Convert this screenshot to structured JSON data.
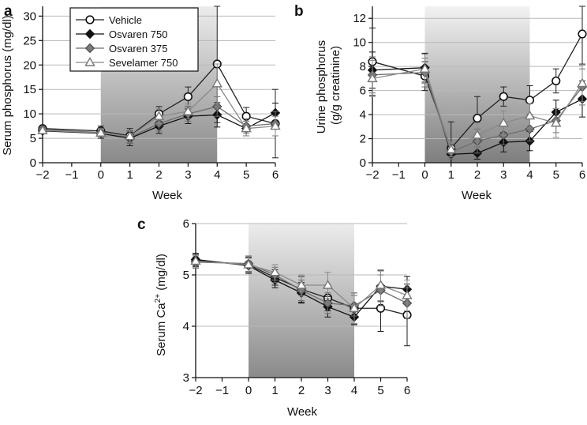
{
  "chart_data": [
    {
      "id": "a",
      "type": "line",
      "panel_label": "a",
      "xlabel": "Week",
      "ylabel": "Serum phosphorus (mg/dl)",
      "x": [
        -2,
        0,
        1,
        2,
        3,
        4,
        5,
        6
      ],
      "xlim": [
        -2,
        6
      ],
      "ylim": [
        0,
        32
      ],
      "yticks": [
        0,
        5,
        10,
        15,
        20,
        25,
        30
      ],
      "xticks": [
        -2,
        -1,
        0,
        1,
        2,
        3,
        4,
        5,
        6
      ],
      "xtick_labels": [
        "−2",
        "−1",
        "0",
        "1",
        "2",
        "3",
        "4",
        "5",
        "6"
      ],
      "shaded_range": [
        0,
        4
      ],
      "grid": true,
      "legend": "top-left",
      "series": [
        {
          "name": "Vehicle",
          "marker": "circle-open",
          "color": "#222222",
          "values": [
            7.0,
            6.5,
            5.5,
            10.0,
            13.5,
            20.2,
            9.5,
            8.0
          ],
          "err": [
            0.5,
            1.0,
            1.5,
            1.5,
            2.0,
            12.0,
            1.8,
            7.0
          ]
        },
        {
          "name": "Osvaren 750",
          "marker": "diamond-filled",
          "color": "#111111",
          "values": [
            6.5,
            6.0,
            5.0,
            7.5,
            9.5,
            9.8,
            7.0,
            10.2
          ],
          "err": [
            0.6,
            1.0,
            1.5,
            1.5,
            1.5,
            2.5,
            1.5,
            2.0
          ]
        },
        {
          "name": "Osvaren 375",
          "marker": "diamond-gray",
          "color": "#6e6e6e",
          "values": [
            6.8,
            6.2,
            5.2,
            8.0,
            10.0,
            11.5,
            7.5,
            8.0
          ],
          "err": [
            0.5,
            0.8,
            1.2,
            1.5,
            1.5,
            2.0,
            1.5,
            2.5
          ]
        },
        {
          "name": "Sevelamer 750",
          "marker": "triangle-open",
          "color": "#8a8a8a",
          "values": [
            6.6,
            6.1,
            5.4,
            9.5,
            10.5,
            16.2,
            7.0,
            7.5
          ],
          "err": [
            0.5,
            0.8,
            1.2,
            1.5,
            1.5,
            4.0,
            1.5,
            2.0
          ]
        }
      ]
    },
    {
      "id": "b",
      "type": "line",
      "panel_label": "b",
      "xlabel": "Week",
      "ylabel": "Urine phosphorus (g/g creatinine)",
      "x": [
        -2,
        0,
        1,
        2,
        3,
        4,
        5,
        6
      ],
      "xlim": [
        -2,
        6
      ],
      "ylim": [
        0,
        13
      ],
      "yticks": [
        0,
        2,
        4,
        6,
        8,
        10,
        12
      ],
      "xticks": [
        -2,
        -1,
        0,
        1,
        2,
        3,
        4,
        5,
        6
      ],
      "xtick_labels": [
        "−2",
        "−1",
        "0",
        "1",
        "2",
        "3",
        "4",
        "5",
        "6"
      ],
      "shaded_range": [
        0,
        4
      ],
      "grid": true,
      "series": [
        {
          "name": "Vehicle",
          "marker": "circle-open",
          "color": "#222222",
          "values": [
            8.4,
            7.2,
            1.2,
            3.7,
            5.5,
            5.2,
            6.8,
            10.7
          ],
          "err": [
            2.8,
            1.2,
            2.2,
            1.8,
            0.8,
            1.2,
            1.0,
            2.5
          ]
        },
        {
          "name": "Osvaren 750",
          "marker": "diamond-filled",
          "color": "#111111",
          "values": [
            7.7,
            7.9,
            0.7,
            0.8,
            1.7,
            1.8,
            4.2,
            5.3
          ],
          "err": [
            1.5,
            1.2,
            0.8,
            0.5,
            0.8,
            0.8,
            1.0,
            1.5
          ]
        },
        {
          "name": "Osvaren 375",
          "marker": "diamond-gray",
          "color": "#6e6e6e",
          "values": [
            7.3,
            7.5,
            0.9,
            1.8,
            2.3,
            2.8,
            3.5,
            6.3
          ],
          "err": [
            1.5,
            1.2,
            0.6,
            1.0,
            0.8,
            1.0,
            1.0,
            1.5
          ]
        },
        {
          "name": "Sevelamer 750",
          "marker": "triangle-open",
          "color": "#8a8a8a",
          "values": [
            7.0,
            7.8,
            1.1,
            2.3,
            3.3,
            3.9,
            3.3,
            6.6
          ],
          "err": [
            1.5,
            1.2,
            0.6,
            1.0,
            1.0,
            1.0,
            1.2,
            1.5
          ]
        }
      ]
    },
    {
      "id": "c",
      "type": "line",
      "panel_label": "c",
      "xlabel": "Week",
      "ylabel_prefix": "Serum Ca",
      "ylabel_sup": "2+",
      "ylabel_suffix": " (mg/dl)",
      "x": [
        -2,
        0,
        1,
        2,
        3,
        4,
        5,
        6
      ],
      "xlim": [
        -2,
        6
      ],
      "ylim": [
        3,
        6
      ],
      "yticks": [
        3,
        4,
        5,
        6
      ],
      "xticks": [
        -2,
        -1,
        0,
        1,
        2,
        3,
        4,
        5,
        6
      ],
      "xtick_labels": [
        "−2",
        "−1",
        "0",
        "1",
        "2",
        "3",
        "4",
        "5",
        "6"
      ],
      "shaded_range": [
        0,
        4
      ],
      "grid": true,
      "series": [
        {
          "name": "Vehicle",
          "marker": "circle-open",
          "color": "#222222",
          "values": [
            5.28,
            5.2,
            4.95,
            4.72,
            4.55,
            4.35,
            4.35,
            4.22
          ],
          "err": [
            0.12,
            0.15,
            0.15,
            0.25,
            0.25,
            0.3,
            0.45,
            0.6
          ]
        },
        {
          "name": "Osvaren 750",
          "marker": "diamond-filled",
          "color": "#111111",
          "values": [
            5.3,
            5.18,
            4.9,
            4.65,
            4.38,
            4.18,
            4.78,
            4.72
          ],
          "err": [
            0.12,
            0.15,
            0.15,
            0.2,
            0.2,
            0.15,
            0.3,
            0.25
          ]
        },
        {
          "name": "Osvaren 375",
          "marker": "diamond-gray",
          "color": "#6e6e6e",
          "values": [
            5.25,
            5.22,
            5.0,
            4.7,
            4.45,
            4.4,
            4.7,
            4.45
          ],
          "err": [
            0.12,
            0.15,
            0.15,
            0.2,
            0.2,
            0.2,
            0.3,
            0.3
          ]
        },
        {
          "name": "Sevelamer 750",
          "marker": "triangle-open",
          "color": "#8a8a8a",
          "values": [
            5.27,
            5.2,
            5.05,
            4.8,
            4.8,
            4.35,
            4.8,
            4.6
          ],
          "err": [
            0.12,
            0.15,
            0.15,
            0.2,
            0.25,
            0.3,
            0.3,
            0.3
          ]
        }
      ]
    }
  ]
}
